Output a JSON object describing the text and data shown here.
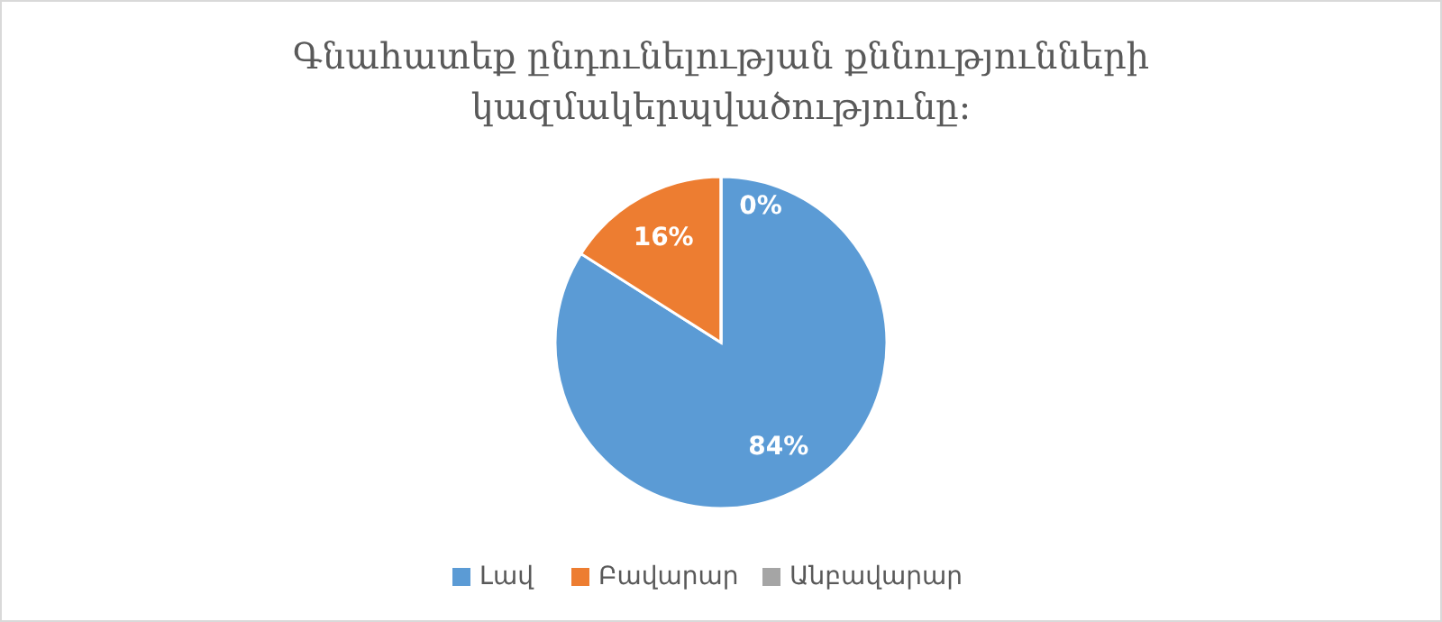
{
  "chart_data": {
    "type": "pie",
    "title": "Գնահատեք ընդունելության քննությունների կազմակերպվածությունը:",
    "categories": [
      "Լավ",
      "Բավարար",
      "Անբավարար"
    ],
    "values": [
      84,
      16,
      0
    ],
    "colors": [
      "#5b9bd5",
      "#ed7d31",
      "#a5a5a5"
    ],
    "value_labels": [
      "84%",
      "16%",
      "0%"
    ],
    "legend": "bottom"
  }
}
